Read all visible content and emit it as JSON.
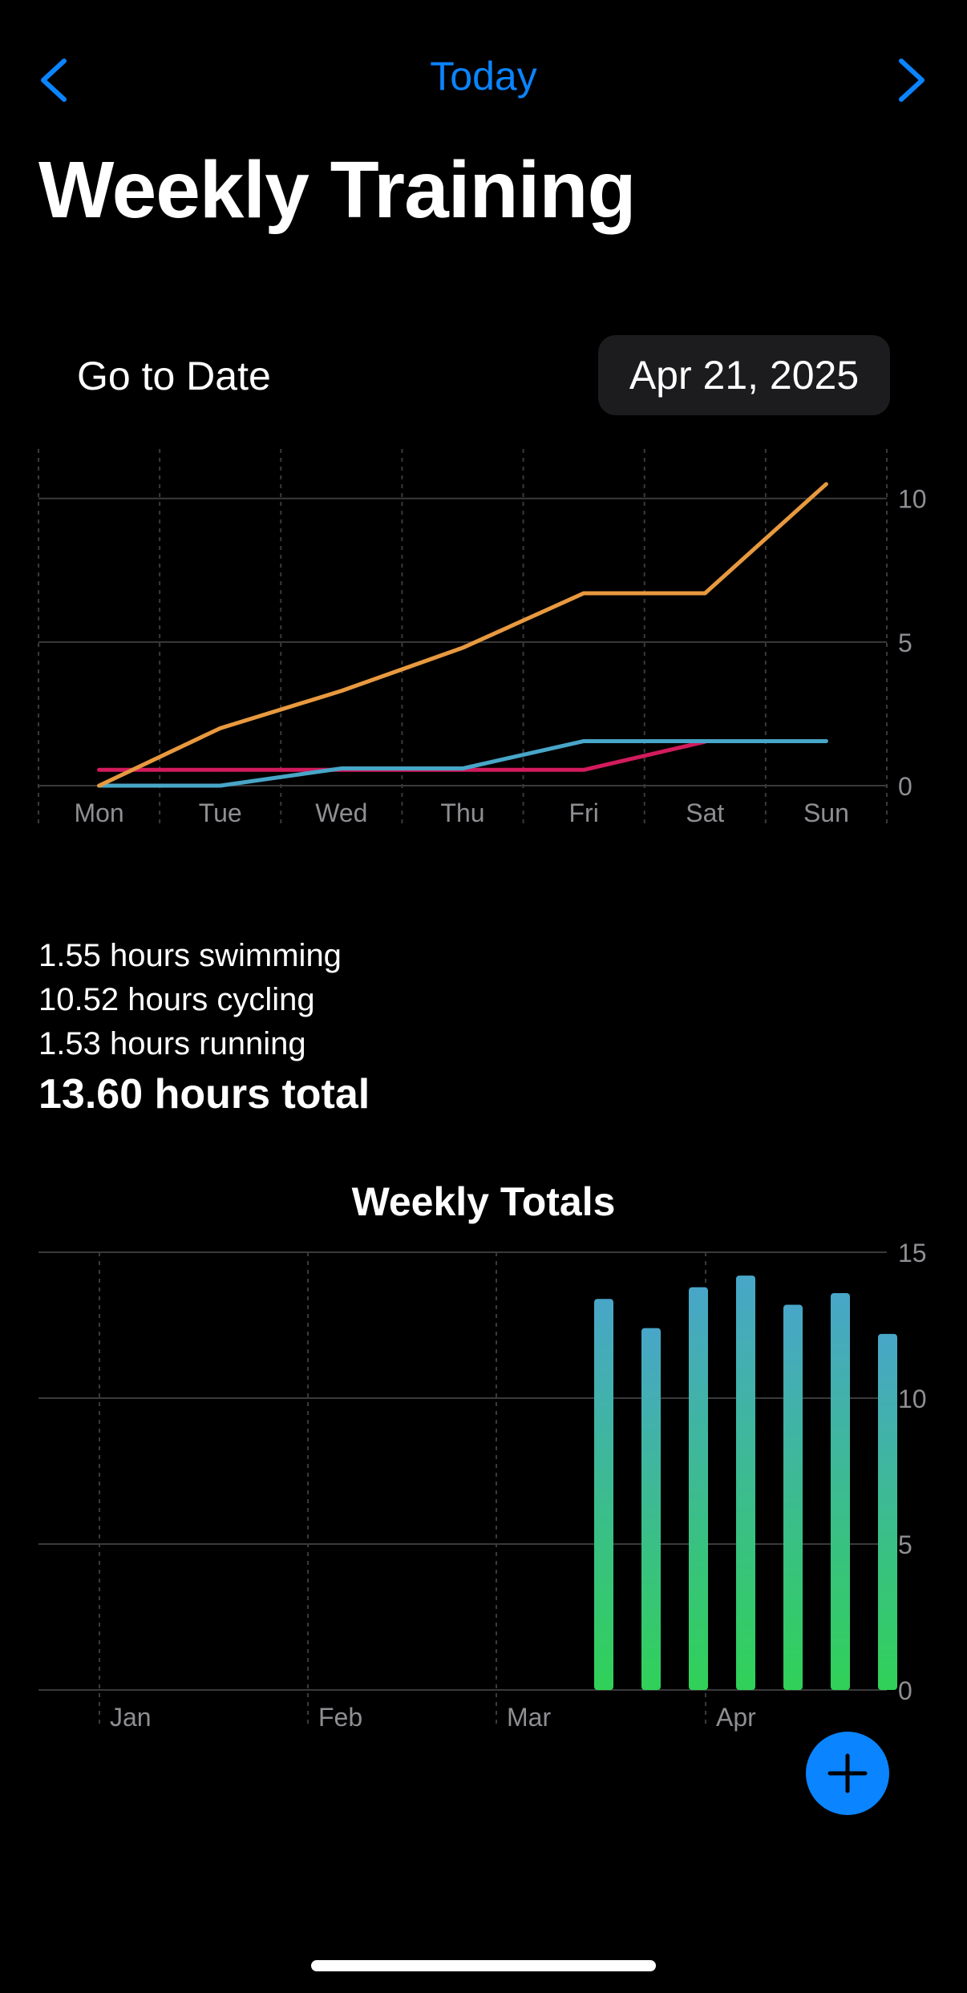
{
  "nav": {
    "today_label": "Today",
    "back_icon": "chevron-left-icon",
    "forward_icon": "chevron-right-icon",
    "accent_color": "#0a84ff"
  },
  "page_title": "Weekly Training",
  "go_to_date": {
    "label": "Go to Date",
    "value": "Apr 21, 2025"
  },
  "stats": {
    "swimming": "1.55 hours swimming",
    "cycling": "10.52 hours cycling",
    "running": "1.53 hours running",
    "total": "13.60 hours total"
  },
  "weekly_totals_title": "Weekly Totals",
  "add_button_icon": "plus-icon",
  "chart_data": [
    {
      "type": "line",
      "categories": [
        "Mon",
        "Tue",
        "Wed",
        "Thu",
        "Fri",
        "Sat",
        "Sun"
      ],
      "ylim": [
        0,
        11.5
      ],
      "yticks": [
        0,
        5,
        10
      ],
      "grid": true,
      "series": [
        {
          "color": "#e8993f",
          "values": [
            0,
            2.0,
            3.3,
            4.8,
            6.7,
            6.7,
            10.5
          ]
        },
        {
          "color": "#48a6c8",
          "values": [
            0,
            0,
            0.6,
            0.6,
            1.55,
            1.55,
            1.55
          ]
        },
        {
          "color": "#d21b5d",
          "values": [
            0.55,
            0.55,
            0.55,
            0.55,
            0.55,
            1.53,
            null
          ]
        }
      ]
    },
    {
      "type": "bar",
      "x_ticks": [
        "Jan",
        "Feb",
        "Mar",
        "Apr"
      ],
      "ylim": [
        0,
        15
      ],
      "yticks": [
        0,
        5,
        10,
        15
      ],
      "grid": true,
      "bar_colors": [
        "#30d158",
        "#48a6c8"
      ],
      "categories": [
        "Mar 17",
        "Mar 24",
        "Mar 31",
        "Apr 7",
        "Apr 14",
        "Apr 21",
        "Apr 28"
      ],
      "values": [
        13.4,
        12.4,
        13.8,
        14.2,
        13.2,
        13.6,
        12.2
      ]
    }
  ]
}
